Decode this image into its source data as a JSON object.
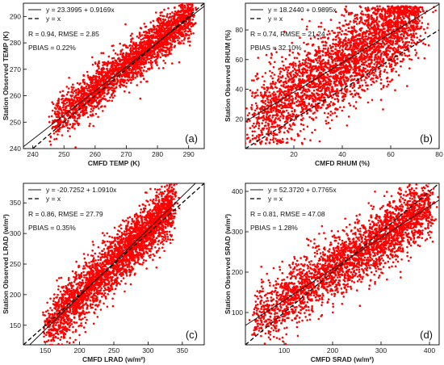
{
  "colors": {
    "points": "#ff0000",
    "fit_line": "#000000",
    "one_to_one": "#000000",
    "background": "#ffffff"
  },
  "chart_data": [
    {
      "type": "scatter",
      "panel_label": "(a)",
      "xlabel": "CMFD TEMP (K)",
      "ylabel": "Station Observed TEMP (K)",
      "xlim": [
        237,
        295
      ],
      "ylim": [
        240,
        295
      ],
      "xticks": [
        240,
        250,
        260,
        270,
        280,
        290
      ],
      "yticks": [
        240,
        250,
        260,
        270,
        280,
        290
      ],
      "legend": [
        "y = 23.3995 + 0.9169x",
        "y = x"
      ],
      "stats": [
        "R = 0.94, RMSE = 2.85",
        "PBIAS = 0.22%"
      ],
      "fit": {
        "intercept": 23.3995,
        "slope": 0.9169
      },
      "cloud": {
        "x_range": [
          246,
          291
        ],
        "spread": 4.0,
        "bias": 0.6,
        "count": 2600
      }
    },
    {
      "type": "scatter",
      "panel_label": "(b)",
      "xlabel": "CMFD RHUM (%)",
      "ylabel": "Station Observed RHUM (%)",
      "xlim": [
        0,
        80
      ],
      "ylim": [
        0,
        98
      ],
      "xticks": [
        20,
        40,
        60,
        80
      ],
      "yticks": [
        20,
        40,
        60,
        80
      ],
      "legend": [
        "y = 18.2440 + 0.9895x",
        "y = x"
      ],
      "stats": [
        "R = 0.74, RMSE = 21.24",
        "PBIAS = 32.10%"
      ],
      "fit": {
        "intercept": 18.244,
        "slope": 0.9895
      },
      "cloud": {
        "x_range": [
          3,
          70
        ],
        "spread": 14.0,
        "bias": 0.0,
        "count": 3200
      }
    },
    {
      "type": "scatter",
      "panel_label": "(c)",
      "xlabel": "CMFD LRAD (w/m²)",
      "ylabel": "Station Observed LRAD (w/m²)",
      "xlim": [
        118,
        382
      ],
      "ylim": [
        118,
        382
      ],
      "xticks": [
        150,
        200,
        250,
        300,
        350
      ],
      "yticks": [
        150,
        200,
        250,
        300,
        350
      ],
      "legend": [
        "y = -20.7252 + 1.0910x",
        "y = x"
      ],
      "stats": [
        "R = 0.86, RMSE = 27.79",
        "PBIAS = 0.35%"
      ],
      "fit": {
        "intercept": -20.7252,
        "slope": 1.091
      },
      "cloud": {
        "x_range": [
          150,
          335
        ],
        "spread": 22.0,
        "bias": 0.0,
        "count": 3000
      }
    },
    {
      "type": "scatter",
      "panel_label": "(d)",
      "xlabel": "CMFD SRAD (w/m²)",
      "ylabel": "Station Observed SRAD (w/m²)",
      "xlim": [
        20,
        420
      ],
      "ylim": [
        20,
        420
      ],
      "xticks": [
        100,
        200,
        300,
        400
      ],
      "yticks": [
        100,
        200,
        300,
        400
      ],
      "legend": [
        "y = 52.3720 + 0.7765x",
        "y = x"
      ],
      "stats": [
        "R = 0.81, RMSE = 47.08",
        "PBIAS = 1.28%"
      ],
      "fit": {
        "intercept": 52.372,
        "slope": 0.7765
      },
      "cloud": {
        "x_range": [
          40,
          400
        ],
        "spread": 38.0,
        "bias": 0.0,
        "count": 2800
      }
    }
  ]
}
